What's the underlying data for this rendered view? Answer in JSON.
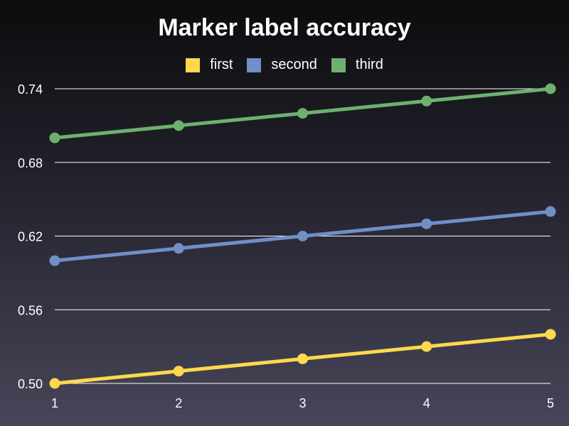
{
  "chart_data": {
    "type": "line",
    "title": "Marker label accuracy",
    "xlabel": "",
    "ylabel": "",
    "x": [
      1,
      2,
      3,
      4,
      5
    ],
    "xlim": [
      1,
      5
    ],
    "ylim": [
      0.5,
      0.74
    ],
    "yticks": [
      0.5,
      0.56,
      0.62,
      0.68,
      0.74
    ],
    "ytick_labels": [
      "0.50",
      "0.56",
      "0.62",
      "0.68",
      "0.74"
    ],
    "xtick_labels": [
      "1",
      "2",
      "3",
      "4",
      "5"
    ],
    "grid": "horizontal",
    "legend_position": "top-center",
    "series": [
      {
        "name": "first",
        "color": "#ffd84d",
        "values": [
          0.5,
          0.51,
          0.52,
          0.53,
          0.54
        ]
      },
      {
        "name": "second",
        "color": "#6f8fc6",
        "values": [
          0.6,
          0.61,
          0.62,
          0.63,
          0.64
        ]
      },
      {
        "name": "third",
        "color": "#6fb06f",
        "values": [
          0.7,
          0.71,
          0.72,
          0.73,
          0.74
        ]
      }
    ]
  }
}
